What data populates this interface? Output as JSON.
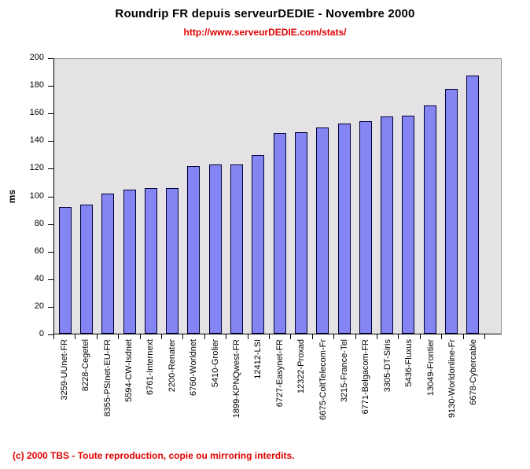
{
  "title": "Roundrip FR depuis serveurDEDIE - Novembre 2000",
  "subtitle": "http://www.serveurDEDIE.com/stats/",
  "footer": "(c) 2000 TBS - Toute reproduction, copie ou mirroring interdits.",
  "colors": {
    "bar_fill": "#8484F2",
    "bar_border": "#000033",
    "plot_bg": "#E5E2E5",
    "plot_border": "#909090",
    "axis": "#000000",
    "red_text": "#E00000",
    "title_text": "#000000"
  },
  "chart_data": {
    "type": "bar",
    "title": "Roundrip FR depuis serveurDEDIE - Novembre 2000",
    "subtitle": "http://www.serveurDEDIE.com/stats/",
    "ylabel": "ms",
    "xlabel": "",
    "ylim": [
      0,
      200
    ],
    "ytick_step": 20,
    "grid": false,
    "legend": "none",
    "categories": [
      "3259-UUnet-FR",
      "8228-Cegetel",
      "8355-PSInet-EU-FR",
      "5594-CW-Isdnet",
      "6761-Internext",
      "2200-Renater",
      "6760-Worldnet",
      "5410-Grolier",
      "1899-KPNQwest-FR",
      "12412-LSI",
      "6727-Easynet-FR",
      "12322-Proxad",
      "6675-ColtTelecom-Fr",
      "3215-France-Tel",
      "6771-Belgacom-FR",
      "3305-DT-Siris",
      "5436-Fluxus",
      "13049-Frontier",
      "9130-Worldonline-Fr",
      "6678-Cybercable"
    ],
    "values": [
      92,
      94,
      102,
      105,
      106,
      106,
      122,
      123,
      123,
      130,
      146,
      147,
      150,
      153,
      155,
      158,
      159,
      166,
      178,
      188
    ]
  }
}
